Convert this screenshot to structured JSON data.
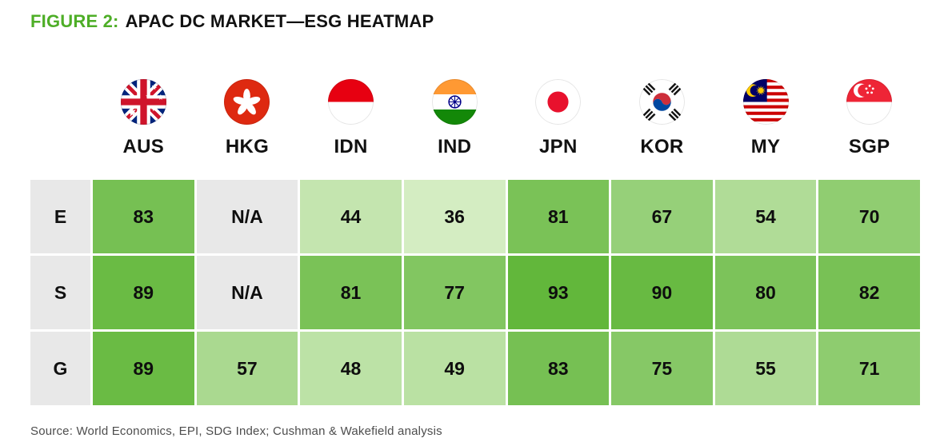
{
  "figure": {
    "label": "FIGURE 2:",
    "title": "APAC DC MARKET—ESG HEATMAP"
  },
  "source": "Source: World Economics, EPI, SDG Index; Cushman & Wakefield analysis",
  "colors": {
    "accent_green": "#4eae27",
    "title_text": "#111111",
    "source_text": "#4d4d4d"
  },
  "chart_data": {
    "type": "heatmap",
    "title": "APAC DC MARKET—ESG HEATMAP",
    "columns": [
      "AUS",
      "HKG",
      "IDN",
      "IND",
      "JPN",
      "KOR",
      "MY",
      "SGP"
    ],
    "flag_icons": [
      "australia-flag-icon",
      "hong-kong-flag-icon",
      "indonesia-flag-icon",
      "india-flag-icon",
      "japan-flag-icon",
      "south-korea-flag-icon",
      "malaysia-flag-icon",
      "singapore-flag-icon"
    ],
    "rows": [
      "E",
      "S",
      "G"
    ],
    "values": [
      [
        83,
        null,
        44,
        36,
        81,
        67,
        54,
        70
      ],
      [
        89,
        null,
        81,
        77,
        93,
        90,
        80,
        82
      ],
      [
        89,
        57,
        48,
        49,
        83,
        75,
        55,
        71
      ]
    ],
    "na_label": "N/A",
    "legend_position": "none",
    "grid": false,
    "color_scale": {
      "domain": [
        36,
        93
      ],
      "min_color": "#d4edc2",
      "max_color": "#62b73b",
      "na_color": "#e8e8e8",
      "row_label_bg": "#e8e8e8"
    }
  }
}
